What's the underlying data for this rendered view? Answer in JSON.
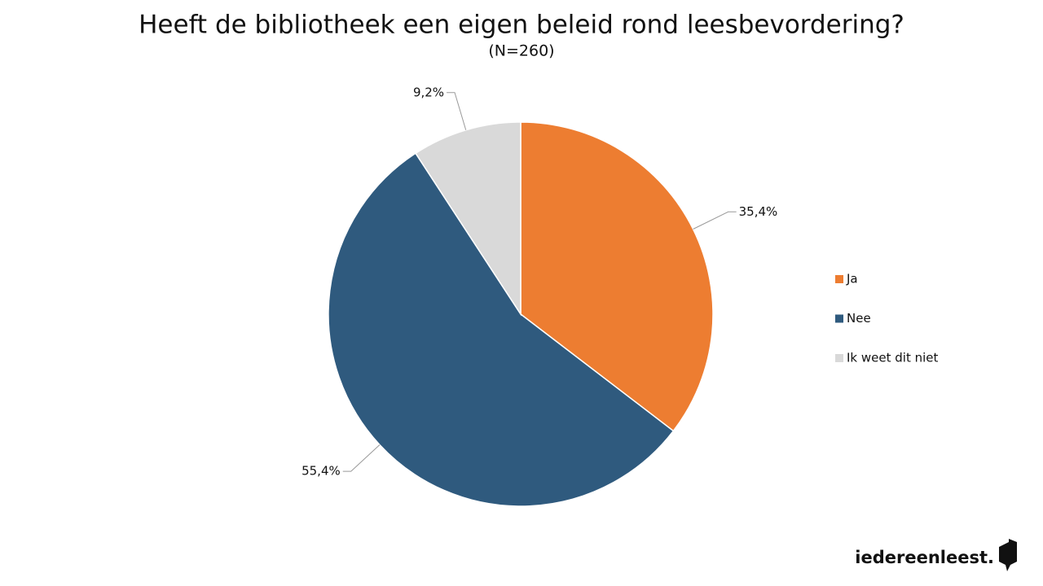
{
  "chart_data": {
    "type": "pie",
    "title": "Heeft de bibliotheek een eigen beleid rond leesbevordering?",
    "subtitle": "(N=260)",
    "categories": [
      "Ja",
      "Nee",
      "Ik weet dit niet"
    ],
    "values": [
      35.4,
      55.4,
      9.2
    ],
    "value_labels": [
      "35,4%",
      "55,4%",
      "9,2%"
    ],
    "colors": [
      "#ED7D31",
      "#2F5A7E",
      "#D9D9D9"
    ],
    "legend": "right"
  },
  "logo": "iedereenleest."
}
